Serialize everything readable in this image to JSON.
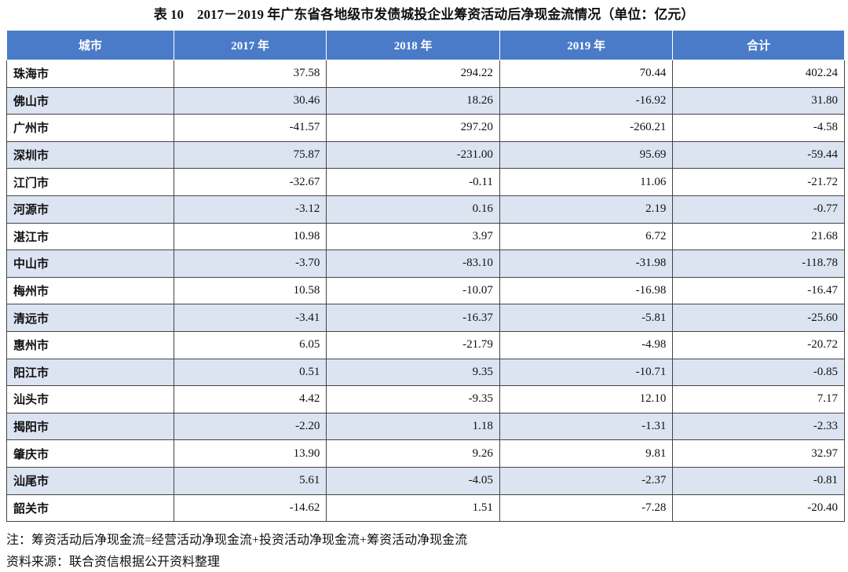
{
  "title": "表 10　2017－2019 年广东省各地级市发债城投企业筹资活动后净现金流情况（单位：亿元）",
  "table": {
    "header": [
      "城市",
      "2017 年",
      "2018 年",
      "2019 年",
      "合计"
    ],
    "rows": [
      [
        "珠海市",
        "37.58",
        "294.22",
        "70.44",
        "402.24"
      ],
      [
        "佛山市",
        "30.46",
        "18.26",
        "-16.92",
        "31.80"
      ],
      [
        "广州市",
        "-41.57",
        "297.20",
        "-260.21",
        "-4.58"
      ],
      [
        "深圳市",
        "75.87",
        "-231.00",
        "95.69",
        "-59.44"
      ],
      [
        "江门市",
        "-32.67",
        "-0.11",
        "11.06",
        "-21.72"
      ],
      [
        "河源市",
        "-3.12",
        "0.16",
        "2.19",
        "-0.77"
      ],
      [
        "湛江市",
        "10.98",
        "3.97",
        "6.72",
        "21.68"
      ],
      [
        "中山市",
        "-3.70",
        "-83.10",
        "-31.98",
        "-118.78"
      ],
      [
        "梅州市",
        "10.58",
        "-10.07",
        "-16.98",
        "-16.47"
      ],
      [
        "清远市",
        "-3.41",
        "-16.37",
        "-5.81",
        "-25.60"
      ],
      [
        "惠州市",
        "6.05",
        "-21.79",
        "-4.98",
        "-20.72"
      ],
      [
        "阳江市",
        "0.51",
        "9.35",
        "-10.71",
        "-0.85"
      ],
      [
        "汕头市",
        "4.42",
        "-9.35",
        "12.10",
        "7.17"
      ],
      [
        "揭阳市",
        "-2.20",
        "1.18",
        "-1.31",
        "-2.33"
      ],
      [
        "肇庆市",
        "13.90",
        "9.26",
        "9.81",
        "32.97"
      ],
      [
        "汕尾市",
        "5.61",
        "-4.05",
        "-2.37",
        "-0.81"
      ],
      [
        "韶关市",
        "-14.62",
        "1.51",
        "-7.28",
        "-20.40"
      ]
    ]
  },
  "note": "注：筹资活动后净现金流=经营活动净现金流+投资活动净现金流+筹资活动净现金流",
  "source": "资料来源：联合资信根据公开资料整理"
}
